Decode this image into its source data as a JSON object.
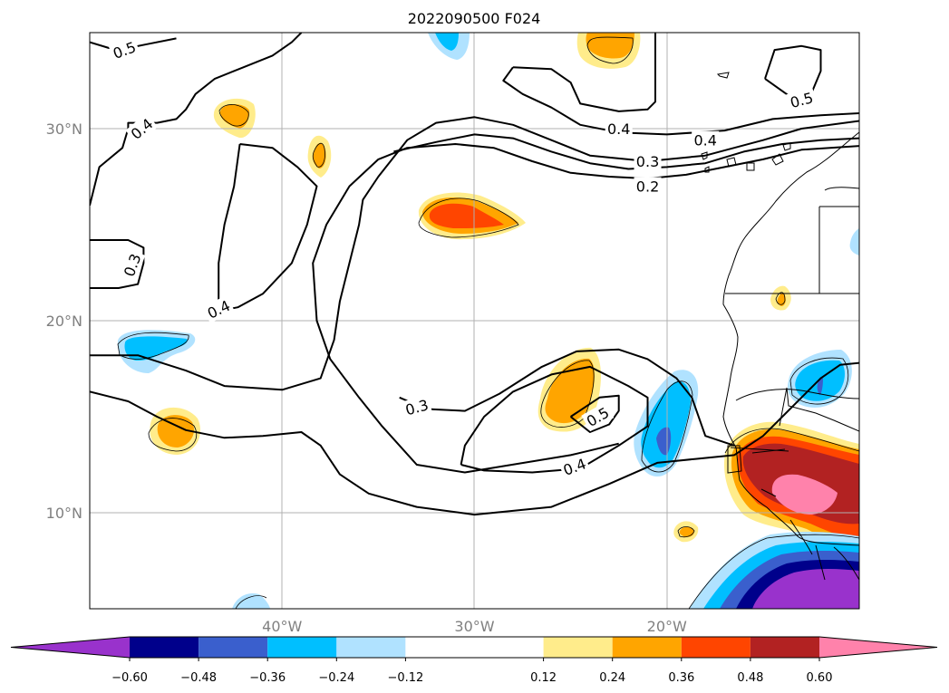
{
  "chart_data": {
    "type": "heatmap",
    "title": "2022090500 F024",
    "x_ticks": [
      {
        "lon": -40,
        "label": "40°W"
      },
      {
        "lon": -30,
        "label": "30°W"
      },
      {
        "lon": -20,
        "label": "20°W"
      }
    ],
    "y_ticks": [
      {
        "lat": 30,
        "label": "30°N"
      },
      {
        "lat": 20,
        "label": "20°N"
      },
      {
        "lat": 10,
        "label": "10°N"
      }
    ],
    "grid": true,
    "xlim": [
      -50,
      -10
    ],
    "ylim": [
      5,
      35
    ],
    "colorbar": {
      "placement": "bottom",
      "extend": "both",
      "levels": [
        -0.72,
        -0.6,
        -0.48,
        -0.36,
        -0.24,
        -0.12,
        0.12,
        0.24,
        0.36,
        0.48,
        0.6,
        0.72
      ],
      "colors": [
        "#9932cc",
        "#00008b",
        "#3a5fcd",
        "#00bfff",
        "#b0e2ff",
        "#ffffff",
        "#ffec8b",
        "#ffa500",
        "#ff4500",
        "#b22222",
        "#ff82ab"
      ],
      "tick_values": [
        -0.6,
        -0.48,
        -0.36,
        -0.24,
        -0.12,
        0.12,
        0.24,
        0.36,
        0.48,
        0.6
      ],
      "tick_labels": [
        "−0.60",
        "−0.48",
        "−0.36",
        "−0.24",
        "−0.12",
        "0.12",
        "0.24",
        "0.36",
        "0.48",
        "0.60"
      ]
    },
    "contour_labels": [
      {
        "text": "0.5",
        "lon": -48.2,
        "lat": 34.1,
        "rotation": -20
      },
      {
        "text": "0.4",
        "lon": -47.3,
        "lat": 30.0,
        "rotation": -40
      },
      {
        "text": "0.3",
        "lon": -47.8,
        "lat": 22.9,
        "rotation": -70
      },
      {
        "text": "0.4",
        "lon": -43.3,
        "lat": 20.6,
        "rotation": -25
      },
      {
        "text": "0.4",
        "lon": -22.5,
        "lat": 30.0,
        "rotation": 0
      },
      {
        "text": "0.4",
        "lon": -18.0,
        "lat": 29.4,
        "rotation": 0
      },
      {
        "text": "0.5",
        "lon": -13.0,
        "lat": 31.5,
        "rotation": -15
      },
      {
        "text": "0.3",
        "lon": -21.0,
        "lat": 28.3,
        "rotation": 0
      },
      {
        "text": "0.2",
        "lon": -21.0,
        "lat": 27.0,
        "rotation": 0
      },
      {
        "text": "0.3",
        "lon": -33.0,
        "lat": 15.5,
        "rotation": -15
      },
      {
        "text": "0.5",
        "lon": -23.6,
        "lat": 15.0,
        "rotation": -30
      },
      {
        "text": "0.4",
        "lon": -24.8,
        "lat": 12.4,
        "rotation": -20
      }
    ],
    "contours": [
      {
        "level": "0.5",
        "points": [
          [
            -50,
            34.5
          ],
          [
            -49,
            34.2
          ],
          [
            -48,
            34.2
          ],
          [
            -47,
            34.4
          ],
          [
            -45.5,
            34.7
          ]
        ]
      },
      {
        "level": "0.4",
        "points": [
          [
            -50,
            26
          ],
          [
            -49.5,
            28
          ],
          [
            -48.3,
            29
          ],
          [
            -48,
            30
          ],
          [
            -48,
            30.3
          ],
          [
            -46.5,
            30.3
          ],
          [
            -45.5,
            30.5
          ],
          [
            -45,
            31
          ],
          [
            -44.5,
            31.8
          ],
          [
            -43.5,
            32.6
          ],
          [
            -42,
            33.2
          ],
          [
            -40.5,
            33.8
          ],
          [
            -39.5,
            34.5
          ],
          [
            -39,
            35
          ]
        ]
      },
      {
        "level": "0.3",
        "points": [
          [
            -50,
            21.7
          ],
          [
            -48.5,
            21.7
          ],
          [
            -47.5,
            21.9
          ],
          [
            -47.2,
            23
          ],
          [
            -47.2,
            23.8
          ],
          [
            -48,
            24.2
          ],
          [
            -50,
            24.2
          ]
        ]
      },
      {
        "level": "0.4",
        "points": [
          [
            -42.2,
            29.2
          ],
          [
            -40.5,
            29
          ],
          [
            -39.2,
            28
          ],
          [
            -38.2,
            27
          ],
          [
            -38.7,
            25
          ],
          [
            -39.5,
            23
          ],
          [
            -41,
            21.4
          ],
          [
            -42.3,
            20.7
          ],
          [
            -43.3,
            20.5
          ],
          [
            -43.3,
            23
          ],
          [
            -43,
            25
          ],
          [
            -42.5,
            27
          ],
          [
            -42.2,
            29.2
          ]
        ]
      },
      {
        "level": "0.2",
        "points": [
          [
            -50,
            18.2
          ],
          [
            -47.5,
            18.2
          ],
          [
            -45,
            17.4
          ],
          [
            -43,
            16.6
          ],
          [
            -40,
            16.4
          ],
          [
            -38,
            17
          ],
          [
            -37.3,
            19
          ],
          [
            -37,
            21
          ],
          [
            -36.5,
            23
          ],
          [
            -36,
            25
          ],
          [
            -35.8,
            26.3
          ],
          [
            -35,
            27.5
          ],
          [
            -33.5,
            29.4
          ],
          [
            -32,
            30.3
          ],
          [
            -30,
            30.6
          ],
          [
            -28,
            30.2
          ],
          [
            -26,
            29.4
          ],
          [
            -24,
            28.6
          ],
          [
            -21,
            28.3
          ],
          [
            -18,
            28.6
          ],
          [
            -15,
            29.4
          ],
          [
            -13,
            30
          ],
          [
            -10,
            30.4
          ]
        ]
      },
      {
        "level": "0.3",
        "points": [
          [
            -50,
            16.3
          ],
          [
            -48,
            15.8
          ],
          [
            -46.5,
            15
          ],
          [
            -45,
            14.3
          ],
          [
            -43,
            13.9
          ],
          [
            -41,
            14
          ],
          [
            -39,
            14.2
          ],
          [
            -38,
            13.5
          ],
          [
            -37,
            12
          ],
          [
            -35.5,
            11
          ],
          [
            -33,
            10.3
          ],
          [
            -30,
            9.9
          ],
          [
            -26,
            10.3
          ],
          [
            -23,
            11.5
          ],
          [
            -20.5,
            12.6
          ],
          [
            -18.5,
            12.8
          ],
          [
            -16.5,
            13
          ],
          [
            -15,
            14
          ],
          [
            -14,
            15
          ],
          [
            -13,
            16
          ],
          [
            -12,
            17
          ],
          [
            -11,
            17.7
          ],
          [
            -10,
            17.8
          ]
        ]
      },
      {
        "level": "0.3",
        "points": [
          [
            -33.9,
            16.0
          ],
          [
            -32.5,
            15.4
          ],
          [
            -30.5,
            15.3
          ],
          [
            -28.7,
            16.2
          ],
          [
            -26.5,
            17.6
          ],
          [
            -24.7,
            18.4
          ],
          [
            -22.5,
            18.5
          ],
          [
            -21,
            18
          ],
          [
            -19.5,
            17
          ],
          [
            -18.7,
            16
          ],
          [
            -18,
            14
          ],
          [
            -16.5,
            13.5
          ]
        ]
      },
      {
        "level": "0.2",
        "points": [
          [
            -22.5,
            13.6
          ],
          [
            -25,
            13
          ],
          [
            -30.5,
            12.1
          ],
          [
            -33,
            12.5
          ],
          [
            -34.8,
            14.5
          ],
          [
            -36,
            16
          ],
          [
            -37.5,
            18
          ],
          [
            -38.2,
            20
          ],
          [
            -38.4,
            23
          ],
          [
            -37.7,
            25
          ],
          [
            -36.5,
            27
          ],
          [
            -35,
            28.4
          ],
          [
            -33.5,
            29
          ],
          [
            -31,
            29.2
          ],
          [
            -29,
            29
          ],
          [
            -27,
            28.3
          ],
          [
            -25,
            27.7
          ],
          [
            -23,
            27.5
          ],
          [
            -21,
            27.4
          ],
          [
            -19,
            27.6
          ],
          [
            -17,
            28
          ],
          [
            -15,
            28.4
          ],
          [
            -13,
            28.9
          ],
          [
            -10,
            29.1
          ]
        ]
      },
      {
        "level": "0.3",
        "points": [
          [
            -34.2,
            28.8
          ],
          [
            -32,
            29.3
          ],
          [
            -30,
            29.7
          ],
          [
            -28,
            29.5
          ],
          [
            -26,
            28.8
          ],
          [
            -24,
            28.2
          ],
          [
            -22,
            27.9
          ],
          [
            -20,
            28
          ],
          [
            -18,
            28.2
          ],
          [
            -16,
            28.8
          ],
          [
            -14,
            29.2
          ],
          [
            -12,
            29.4
          ],
          [
            -10,
            29.5
          ]
        ]
      },
      {
        "level": "0.4",
        "points": [
          [
            -30.7,
            12.5
          ],
          [
            -29.5,
            12.2
          ],
          [
            -27,
            12.1
          ],
          [
            -24.5,
            12.3
          ],
          [
            -22.5,
            13.5
          ],
          [
            -21,
            14.5
          ],
          [
            -21,
            16
          ],
          [
            -22,
            16.6
          ],
          [
            -24,
            17.6
          ],
          [
            -26,
            17.2
          ],
          [
            -28,
            16.3
          ],
          [
            -29.5,
            15
          ],
          [
            -30.5,
            13.5
          ],
          [
            -30.7,
            12.5
          ]
        ]
      },
      {
        "level": "0.5",
        "points": [
          [
            -25,
            15
          ],
          [
            -23.5,
            16
          ],
          [
            -22.5,
            16.1
          ],
          [
            -22.5,
            15.3
          ],
          [
            -23,
            14.6
          ],
          [
            -24,
            14.2
          ],
          [
            -25,
            15
          ]
        ]
      },
      {
        "level": "0.4",
        "points": [
          [
            -28,
            33.2
          ],
          [
            -26,
            33.1
          ],
          [
            -25,
            32.4
          ],
          [
            -24.5,
            31.3
          ],
          [
            -22.5,
            30.9
          ],
          [
            -21,
            31
          ],
          [
            -20.6,
            31.4
          ],
          [
            -20.6,
            35
          ]
        ]
      },
      {
        "level": "0.4",
        "points": [
          [
            -28,
            33.2
          ],
          [
            -28.5,
            32.5
          ],
          [
            -27.5,
            31.8
          ],
          [
            -26,
            31.1
          ],
          [
            -24.5,
            30.2
          ],
          [
            -22.5,
            29.8
          ],
          [
            -20,
            29.7
          ],
          [
            -17,
            29.9
          ],
          [
            -14.5,
            30.5
          ],
          [
            -12,
            30.7
          ],
          [
            -10,
            30.8
          ]
        ]
      },
      {
        "level": "0.5",
        "points": [
          [
            -14.9,
            32.6
          ],
          [
            -14.4,
            34.1
          ],
          [
            -13,
            34.3
          ],
          [
            -12,
            34.1
          ],
          [
            -12,
            33
          ],
          [
            -12.5,
            31.8
          ],
          [
            -13.5,
            31.6
          ],
          [
            -14.9,
            32.6
          ]
        ]
      }
    ]
  }
}
